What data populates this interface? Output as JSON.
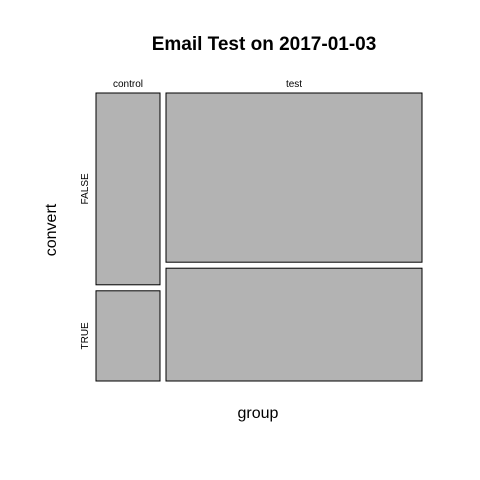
{
  "chart_data": {
    "type": "mosaic",
    "title": "Email Test on 2017-01-03",
    "xlabel": "group",
    "ylabel": "convert",
    "x_categories": [
      "control",
      "test"
    ],
    "y_categories": [
      "FALSE",
      "TRUE"
    ],
    "column_proportions": [
      0.2,
      0.8
    ],
    "cells": [
      {
        "group": "control",
        "convert": "FALSE",
        "proportion_within_group": 0.68
      },
      {
        "group": "control",
        "convert": "TRUE",
        "proportion_within_group": 0.32
      },
      {
        "group": "test",
        "convert": "FALSE",
        "proportion_within_group": 0.6
      },
      {
        "group": "test",
        "convert": "TRUE",
        "proportion_within_group": 0.4
      }
    ],
    "tile_color": "#b3b3b3",
    "grid": false,
    "legend": "none"
  }
}
